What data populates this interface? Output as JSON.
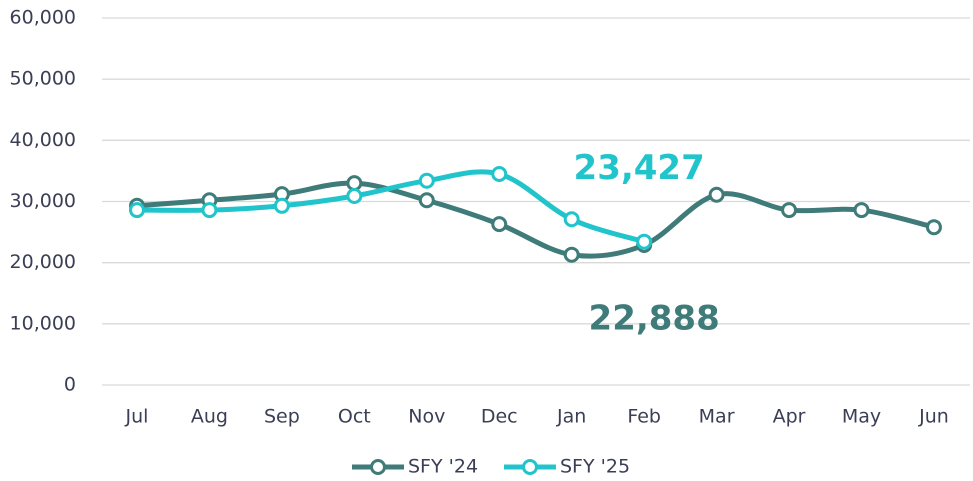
{
  "chart_data": {
    "type": "line",
    "categories": [
      "Jul",
      "Aug",
      "Sep",
      "Oct",
      "Nov",
      "Dec",
      "Jan",
      "Feb",
      "Mar",
      "Apr",
      "May",
      "Jun"
    ],
    "series": [
      {
        "name": "SFY '24",
        "color": "#3e7b79",
        "values": [
          29300,
          30200,
          31200,
          33000,
          30200,
          26300,
          21300,
          22888,
          31100,
          28600,
          28600,
          25800
        ],
        "value_labels": [
          null,
          null,
          null,
          null,
          null,
          null,
          null,
          "22,888",
          null,
          null,
          null,
          null
        ]
      },
      {
        "name": "SFY '25",
        "color": "#22c4cc",
        "values": [
          28600,
          28600,
          29300,
          30900,
          33400,
          34500,
          27100,
          23427,
          null,
          null,
          null,
          null
        ],
        "value_labels": [
          null,
          null,
          null,
          null,
          null,
          null,
          null,
          "23,427",
          null,
          null,
          null,
          null
        ]
      }
    ],
    "ylim": [
      0,
      60000
    ],
    "yticks": [
      0,
      {
        "value": 10000,
        "label": "10,000"
      },
      {
        "value": 20000,
        "label": "20,000"
      },
      {
        "value": 30000,
        "label": "30,000"
      },
      {
        "value": 40000,
        "label": "40,000"
      },
      {
        "value": 50000,
        "label": "50,000"
      },
      {
        "value": 60000,
        "label": "60,000"
      }
    ],
    "grid": true,
    "legend": "bottom"
  }
}
